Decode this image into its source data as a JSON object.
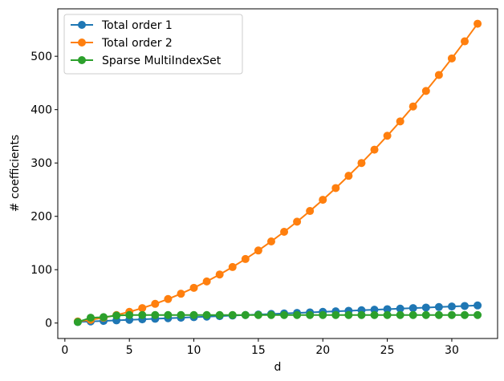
{
  "chart_data": {
    "type": "line",
    "title": "",
    "xlabel": "d",
    "ylabel": "# coefficients",
    "xlim": [
      -0.55,
      33.55
    ],
    "ylim": [
      -28.95,
      588.95
    ],
    "xticks": [
      0,
      5,
      10,
      15,
      20,
      25,
      30
    ],
    "yticks": [
      0,
      100,
      200,
      300,
      400,
      500
    ],
    "grid": false,
    "legend_position": "upper-left",
    "x": [
      1,
      2,
      3,
      4,
      5,
      6,
      7,
      8,
      9,
      10,
      11,
      12,
      13,
      14,
      15,
      16,
      17,
      18,
      19,
      20,
      21,
      22,
      23,
      24,
      25,
      26,
      27,
      28,
      29,
      30,
      31,
      32
    ],
    "series": [
      {
        "name": "Total order 1",
        "color": "#1f77b4",
        "values": [
          2,
          3,
          4,
          5,
          6,
          7,
          8,
          9,
          10,
          11,
          12,
          13,
          14,
          15,
          16,
          17,
          18,
          19,
          20,
          21,
          22,
          23,
          24,
          25,
          26,
          27,
          28,
          29,
          30,
          31,
          32,
          33
        ]
      },
      {
        "name": "Total order 2",
        "color": "#ff7f0e",
        "values": [
          3,
          6,
          10,
          15,
          21,
          28,
          36,
          45,
          55,
          66,
          78,
          91,
          105,
          120,
          136,
          153,
          171,
          190,
          210,
          231,
          253,
          276,
          300,
          325,
          351,
          378,
          406,
          435,
          465,
          496,
          528,
          561
        ]
      },
      {
        "name": "Sparse MultiIndexSet",
        "color": "#2ca02c",
        "values": [
          2,
          10,
          11,
          14,
          15,
          15,
          15,
          15,
          15,
          15,
          15,
          15,
          15,
          15,
          15,
          15,
          15,
          15,
          15,
          15,
          15,
          15,
          15,
          15,
          15,
          15,
          15,
          15,
          15,
          15,
          15,
          15
        ]
      }
    ]
  }
}
